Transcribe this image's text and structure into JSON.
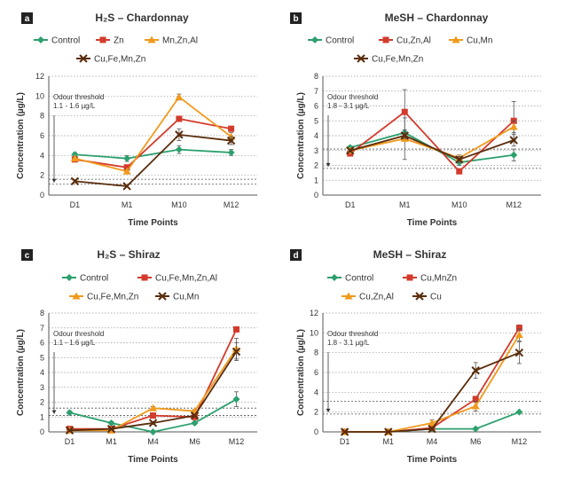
{
  "colors": {
    "control": "#2ca06e",
    "red": "#d33b2d",
    "orange": "#f19a1d",
    "brown": "#5a2d0c",
    "badge": "#222222"
  },
  "chart_data": [
    {
      "type": "line",
      "panel": "a",
      "title": "H₂S – Chardonnay",
      "xlabel": "Time Points",
      "ylabel": "Concentration (µg/L)",
      "categories": [
        "D1",
        "M1",
        "M10",
        "M12"
      ],
      "ylim": [
        0,
        12
      ],
      "yticks": [
        0,
        2,
        4,
        6,
        8,
        10,
        12
      ],
      "grid": "horizontal dotted",
      "annotation": [
        "Odour threshold",
        "1.1 - 1.6 µg/L"
      ],
      "threshold": [
        1.1,
        1.6
      ],
      "legend_rows": [
        [
          "Control",
          "Zn",
          "Mn,Zn,Al"
        ],
        [
          "Cu,Fe,Mn,Zn"
        ]
      ],
      "series": [
        {
          "name": "Control",
          "color": "control",
          "marker": "diamond",
          "values": [
            4.1,
            3.7,
            4.6,
            4.3
          ],
          "err": [
            0.2,
            0.3,
            0.4,
            0.3
          ]
        },
        {
          "name": "Zn",
          "color": "red",
          "marker": "square",
          "values": [
            3.6,
            2.8,
            7.7,
            6.7
          ],
          "err": [
            0.2,
            0.2,
            0.2,
            0.2
          ]
        },
        {
          "name": "Mn,Zn,Al",
          "color": "orange",
          "marker": "triangle",
          "values": [
            3.7,
            2.4,
            9.9,
            5.9
          ],
          "err": [
            0.2,
            0.2,
            0.3,
            0.4
          ]
        },
        {
          "name": "Cu,Fe,Mn,Zn",
          "color": "brown",
          "marker": "x",
          "values": [
            1.4,
            0.9,
            6.1,
            5.5
          ],
          "err": [
            0,
            0,
            0.6,
            0.4
          ]
        }
      ]
    },
    {
      "type": "line",
      "panel": "b",
      "title": "MeSH – Chardonnay",
      "xlabel": "Time Points",
      "ylabel": "Concentration (µg/L)",
      "categories": [
        "D1",
        "M1",
        "M10",
        "M12"
      ],
      "ylim": [
        0,
        8
      ],
      "yticks": [
        0,
        1,
        2,
        3,
        4,
        5,
        6,
        7,
        8
      ],
      "grid": "horizontal dotted",
      "annotation": [
        "Odour threshold",
        "1.8 - 3.1 µg/L"
      ],
      "threshold": [
        1.8,
        3.1
      ],
      "legend_rows": [
        [
          "Control",
          "Cu,Zn,Al",
          "Cu,Mn"
        ],
        [
          "Cu,Fe,Mn,Zn"
        ]
      ],
      "series": [
        {
          "name": "Control",
          "color": "control",
          "marker": "diamond",
          "values": [
            3.2,
            4.2,
            2.2,
            2.7
          ],
          "err": [
            0.1,
            0.2,
            0.2,
            0.4
          ]
        },
        {
          "name": "Cu,Zn,Al",
          "color": "red",
          "marker": "square",
          "values": [
            2.8,
            5.6,
            1.6,
            5.0
          ],
          "err": [
            0.1,
            1.5,
            0.1,
            1.3
          ]
        },
        {
          "name": "Cu,Mn",
          "color": "orange",
          "marker": "triangle",
          "values": [
            3.0,
            3.8,
            2.5,
            4.6
          ],
          "err": [
            0.1,
            1.4,
            0.2,
            0.4
          ]
        },
        {
          "name": "Cu,Fe,Mn,Zn",
          "color": "brown",
          "marker": "x",
          "values": [
            3.0,
            4.0,
            2.4,
            3.7
          ],
          "err": [
            0.1,
            0.2,
            0.2,
            0.4
          ]
        }
      ]
    },
    {
      "type": "line",
      "panel": "c",
      "title": "H₂S – Shiraz",
      "xlabel": "Time Points",
      "ylabel": "Concentration (µg/L)",
      "categories": [
        "D1",
        "M1",
        "M4",
        "M6",
        "M12"
      ],
      "ylim": [
        0,
        8
      ],
      "yticks": [
        0,
        1,
        2,
        3,
        4,
        5,
        6,
        7,
        8
      ],
      "grid": "horizontal dotted",
      "annotation": [
        "Odour threshold",
        "1.1 - 1.6 µg/L"
      ],
      "threshold": [
        1.1,
        1.6
      ],
      "legend_rows": [
        [
          "Control",
          "Cu,Fe,Mn,Zn,Al"
        ],
        [
          "Cu,Fe,Mn,Zn",
          "Cu,Mn"
        ]
      ],
      "series": [
        {
          "name": "Control",
          "color": "control",
          "marker": "diamond",
          "values": [
            1.3,
            0.6,
            0.0,
            0.6,
            2.2
          ],
          "err": [
            0.1,
            0.1,
            0,
            0.1,
            0.5
          ]
        },
        {
          "name": "Cu,Fe,Mn,Zn,Al",
          "color": "red",
          "marker": "square",
          "values": [
            0.2,
            0.2,
            1.1,
            1.0,
            6.9
          ],
          "err": [
            0.05,
            0.05,
            0.1,
            0.1,
            0.1
          ]
        },
        {
          "name": "Cu,Fe,Mn,Zn",
          "color": "orange",
          "marker": "triangle",
          "values": [
            0.1,
            0.1,
            1.6,
            1.4,
            5.6
          ],
          "err": [
            0.05,
            0.05,
            0.1,
            0.1,
            0.7
          ]
        },
        {
          "name": "Cu,Mn",
          "color": "brown",
          "marker": "x",
          "values": [
            0.1,
            0.2,
            0.6,
            1.1,
            5.4
          ],
          "err": [
            0.05,
            0.05,
            0.1,
            0.1,
            0.6
          ]
        }
      ]
    },
    {
      "type": "line",
      "panel": "d",
      "title": "MeSH – Shiraz",
      "xlabel": "Time Points",
      "ylabel": "Concentration (µg/L)",
      "categories": [
        "D1",
        "M1",
        "M4",
        "M6",
        "M12"
      ],
      "ylim": [
        0,
        12
      ],
      "yticks": [
        0,
        2,
        4,
        6,
        8,
        10,
        12
      ],
      "grid": "horizontal dotted",
      "annotation": [
        "Odour threshold",
        "1.8 - 3.1 µg/L"
      ],
      "threshold": [
        1.8,
        3.1
      ],
      "legend_rows": [
        [
          "Control",
          "Cu,MnZn"
        ],
        [
          "Cu,Zn,Al",
          "Cu"
        ]
      ],
      "series": [
        {
          "name": "Control",
          "color": "control",
          "marker": "diamond",
          "values": [
            0.0,
            0.0,
            0.3,
            0.3,
            2.0
          ],
          "err": [
            0,
            0,
            0,
            0,
            0.1
          ]
        },
        {
          "name": "Cu,MnZn",
          "color": "red",
          "marker": "square",
          "values": [
            0.0,
            0.0,
            0.4,
            3.3,
            10.5
          ],
          "err": [
            0,
            0,
            0.1,
            0.3,
            0.3
          ]
        },
        {
          "name": "Cu,Zn,Al",
          "color": "orange",
          "marker": "triangle",
          "values": [
            0.0,
            0.0,
            0.9,
            2.6,
            9.8
          ],
          "err": [
            0,
            0,
            0.3,
            0.5,
            0.6
          ]
        },
        {
          "name": "Cu",
          "color": "brown",
          "marker": "x",
          "values": [
            0.0,
            0.0,
            0.3,
            6.2,
            8.0
          ],
          "err": [
            0,
            0,
            0.1,
            0.8,
            1.1
          ]
        }
      ]
    }
  ]
}
